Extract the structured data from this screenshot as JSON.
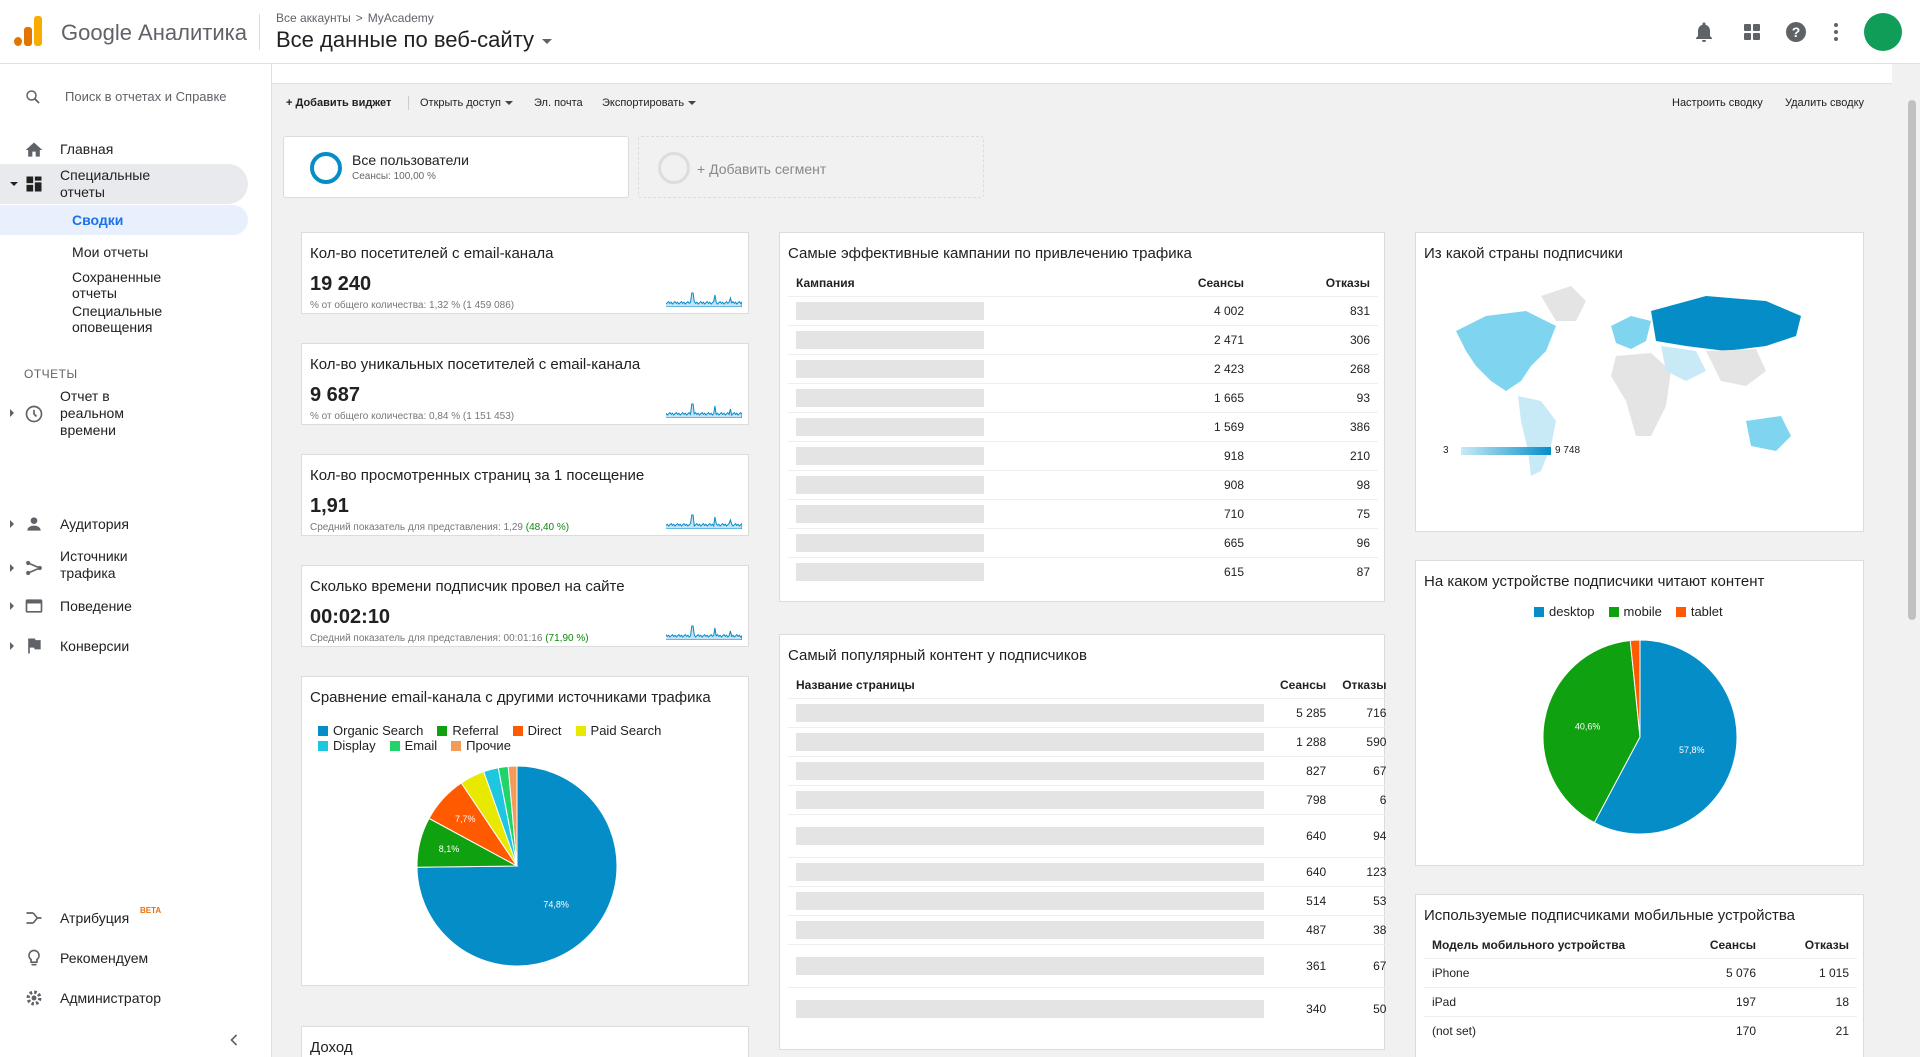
{
  "header": {
    "app_name": "Google Аналитика",
    "breadcrumb": [
      "Все аккаунты",
      ">",
      "MyAcademy"
    ],
    "view_title": "Все данные по веб-сайту"
  },
  "sidebar": {
    "search_placeholder": "Поиск в отчетах и Справке",
    "home": "Главная",
    "special_reports": "Специальные отчеты",
    "sub_items": [
      "Сводки",
      "Мои отчеты",
      "Сохраненные отчеты",
      "Специальные оповещения"
    ],
    "reports_heading": "ОТЧЕТЫ",
    "reports": [
      "Отчет в реальном времени",
      "Аудитория",
      "Источники трафика",
      "Поведение",
      "Конверсии"
    ],
    "attribution": "Атрибуция",
    "beta": "BETA",
    "recommended": "Рекомендуем",
    "admin": "Администратор"
  },
  "toolbar": {
    "add_widget": "+ Добавить виджет",
    "share": "Открыть доступ",
    "email": "Эл. почта",
    "export": "Экспортировать",
    "customize": "Настроить сводку",
    "delete": "Удалить сводку"
  },
  "segments": {
    "all_users": "Все пользователи",
    "all_users_note": "Сеансы: 100,00 %",
    "add_segment": "+ Добавить сегмент"
  },
  "metrics": [
    {
      "title": "Кол-во посетителей с email-канала",
      "value": "19 240",
      "note": "% от общего количества: 1,32 % (1 459 086)",
      "note_pct": ""
    },
    {
      "title": "Кол-во уникальных посетителей с email-канала",
      "value": "9 687",
      "note": "% от общего количества: 0,84 % (1 151 453)",
      "note_pct": ""
    },
    {
      "title": "Кол-во просмотренных страниц за 1 посещение",
      "value": "1,91",
      "note": "Средний показатель для представления: 1,29",
      "note_pct": "(48,40 %)"
    },
    {
      "title": "Сколько времени подписчик провел на сайте",
      "value": "00:02:10",
      "note": "Средний показатель для представления: 00:01:16",
      "note_pct": "(71,90 %)"
    }
  ],
  "compare_card": {
    "title": "Сравнение email-канала с другими источниками трафика",
    "legend": [
      {
        "name": "Organic Search",
        "color": "#058dc7"
      },
      {
        "name": "Referral",
        "color": "#0fa10f"
      },
      {
        "name": "Direct",
        "color": "#ff5a00"
      },
      {
        "name": "Paid Search",
        "color": "#e8e800"
      },
      {
        "name": "Display",
        "color": "#1fc6e0"
      },
      {
        "name": "Email",
        "color": "#21d36a"
      },
      {
        "name": "Прочие",
        "color": "#f59b58"
      }
    ],
    "slice_labels": [
      "74,8%",
      "8,1%",
      "7,7%"
    ]
  },
  "revenue_card": {
    "title": "Доход"
  },
  "campaigns_card": {
    "title": "Самые эффективные кампании по привлечению трафика",
    "headers": [
      "Кампания",
      "Сеансы",
      "Отказы"
    ],
    "rows": [
      [
        "4 002",
        "831"
      ],
      [
        "2 471",
        "306"
      ],
      [
        "2 423",
        "268"
      ],
      [
        "1 665",
        "93"
      ],
      [
        "1 569",
        "386"
      ],
      [
        "918",
        "210"
      ],
      [
        "908",
        "98"
      ],
      [
        "710",
        "75"
      ],
      [
        "665",
        "96"
      ],
      [
        "615",
        "87"
      ]
    ]
  },
  "content_card": {
    "title": "Самый популярный контент у подписчиков",
    "headers": [
      "Название страницы",
      "Сеансы",
      "Отказы"
    ],
    "rows": [
      [
        "5 285",
        "716"
      ],
      [
        "1 288",
        "590"
      ],
      [
        "827",
        "67"
      ],
      [
        "798",
        "6"
      ],
      [
        "640",
        "94"
      ],
      [
        "640",
        "123"
      ],
      [
        "514",
        "53"
      ],
      [
        "487",
        "38"
      ],
      [
        "361",
        "67"
      ],
      [
        "340",
        "50"
      ]
    ]
  },
  "country_card": {
    "title": "Из какой страны подписчики",
    "scale_min": "3",
    "scale_max": "9 748"
  },
  "device_card": {
    "title": "На каком устройстве подписчики читают контент",
    "legend": [
      {
        "name": "desktop",
        "color": "#058dc7"
      },
      {
        "name": "mobile",
        "color": "#0fa10f"
      },
      {
        "name": "tablet",
        "color": "#ff5a00"
      }
    ],
    "slice_labels": [
      "57,8%",
      "40,6%"
    ]
  },
  "mobile_card": {
    "title": "Используемые подписчиками мобильные устройства",
    "headers": [
      "Модель мобильного устройства",
      "Сеансы",
      "Отказы"
    ],
    "rows": [
      [
        "iPhone",
        "5 076",
        "1 015"
      ],
      [
        "iPad",
        "197",
        "18"
      ],
      [
        "(not set)",
        "170",
        "21"
      ]
    ]
  },
  "chart_data": [
    {
      "type": "pie",
      "title": "Сравнение email-канала с другими источниками трафика",
      "categories": [
        "Organic Search",
        "Referral",
        "Direct",
        "Paid Search",
        "Display",
        "Email",
        "Прочие"
      ],
      "values": [
        74.8,
        8.1,
        7.7,
        4.0,
        2.4,
        1.6,
        1.4
      ],
      "colors": [
        "#058dc7",
        "#0fa10f",
        "#ff5a00",
        "#e8e800",
        "#1fc6e0",
        "#21d36a",
        "#f59b58"
      ]
    },
    {
      "type": "pie",
      "title": "На каком устройстве подписчики читают контент",
      "categories": [
        "desktop",
        "mobile",
        "tablet"
      ],
      "values": [
        57.8,
        40.6,
        1.6
      ],
      "colors": [
        "#058dc7",
        "#0fa10f",
        "#ff5a00"
      ]
    }
  ]
}
